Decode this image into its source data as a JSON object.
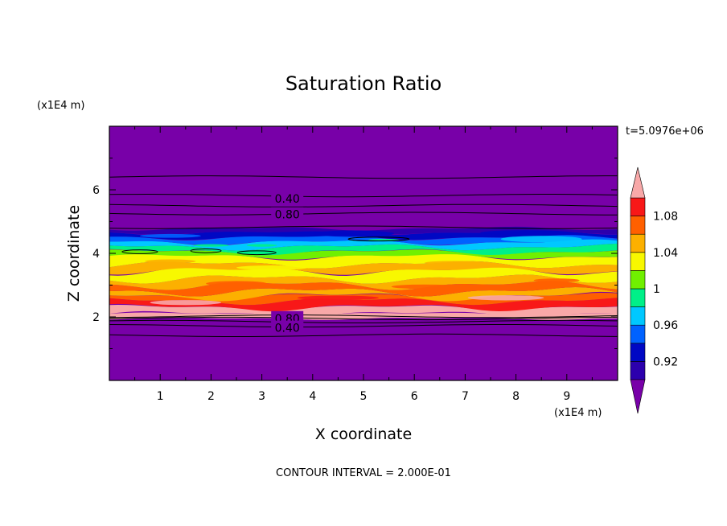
{
  "chart_data": {
    "type": "heatmap",
    "title": "Saturation Ratio",
    "xlabel": "X coordinate",
    "ylabel": "Z coordinate",
    "x_units": "(x1E4 m)",
    "y_units": "(x1E4 m)",
    "xlim": [
      0,
      10
    ],
    "ylim": [
      0,
      8
    ],
    "x_ticks": [
      "1",
      "2",
      "3",
      "4",
      "5",
      "6",
      "7",
      "8",
      "9"
    ],
    "y_ticks": [
      "2",
      "4",
      "6"
    ],
    "time_label": "t=5.0976e+06",
    "footer": "CONTOUR INTERVAL = 2.000E-01",
    "colorbar": {
      "levels": [
        0.9,
        0.92,
        0.94,
        0.96,
        0.98,
        1.0,
        1.02,
        1.04,
        1.06,
        1.08,
        1.1
      ],
      "tick_labels": [
        "0.92",
        "0.96",
        "1",
        "1.04",
        "1.08"
      ],
      "tick_values": [
        0.92,
        0.96,
        1.0,
        1.04,
        1.08
      ],
      "colors": [
        "#7800a8",
        "#2c00ad",
        "#0008c4",
        "#0062ff",
        "#00c8ff",
        "#00f088",
        "#70f000",
        "#f8f800",
        "#fcb000",
        "#ff6000",
        "#f81818",
        "#f8a8a8"
      ]
    },
    "contour_labels": [
      {
        "text": "0.40",
        "x": 3.5,
        "z": 5.75
      },
      {
        "text": "0.80",
        "x": 3.5,
        "z": 5.25
      },
      {
        "text": "0.80",
        "x": 3.5,
        "z": 1.98
      },
      {
        "text": "0.40",
        "x": 3.5,
        "z": 1.68
      }
    ]
  }
}
